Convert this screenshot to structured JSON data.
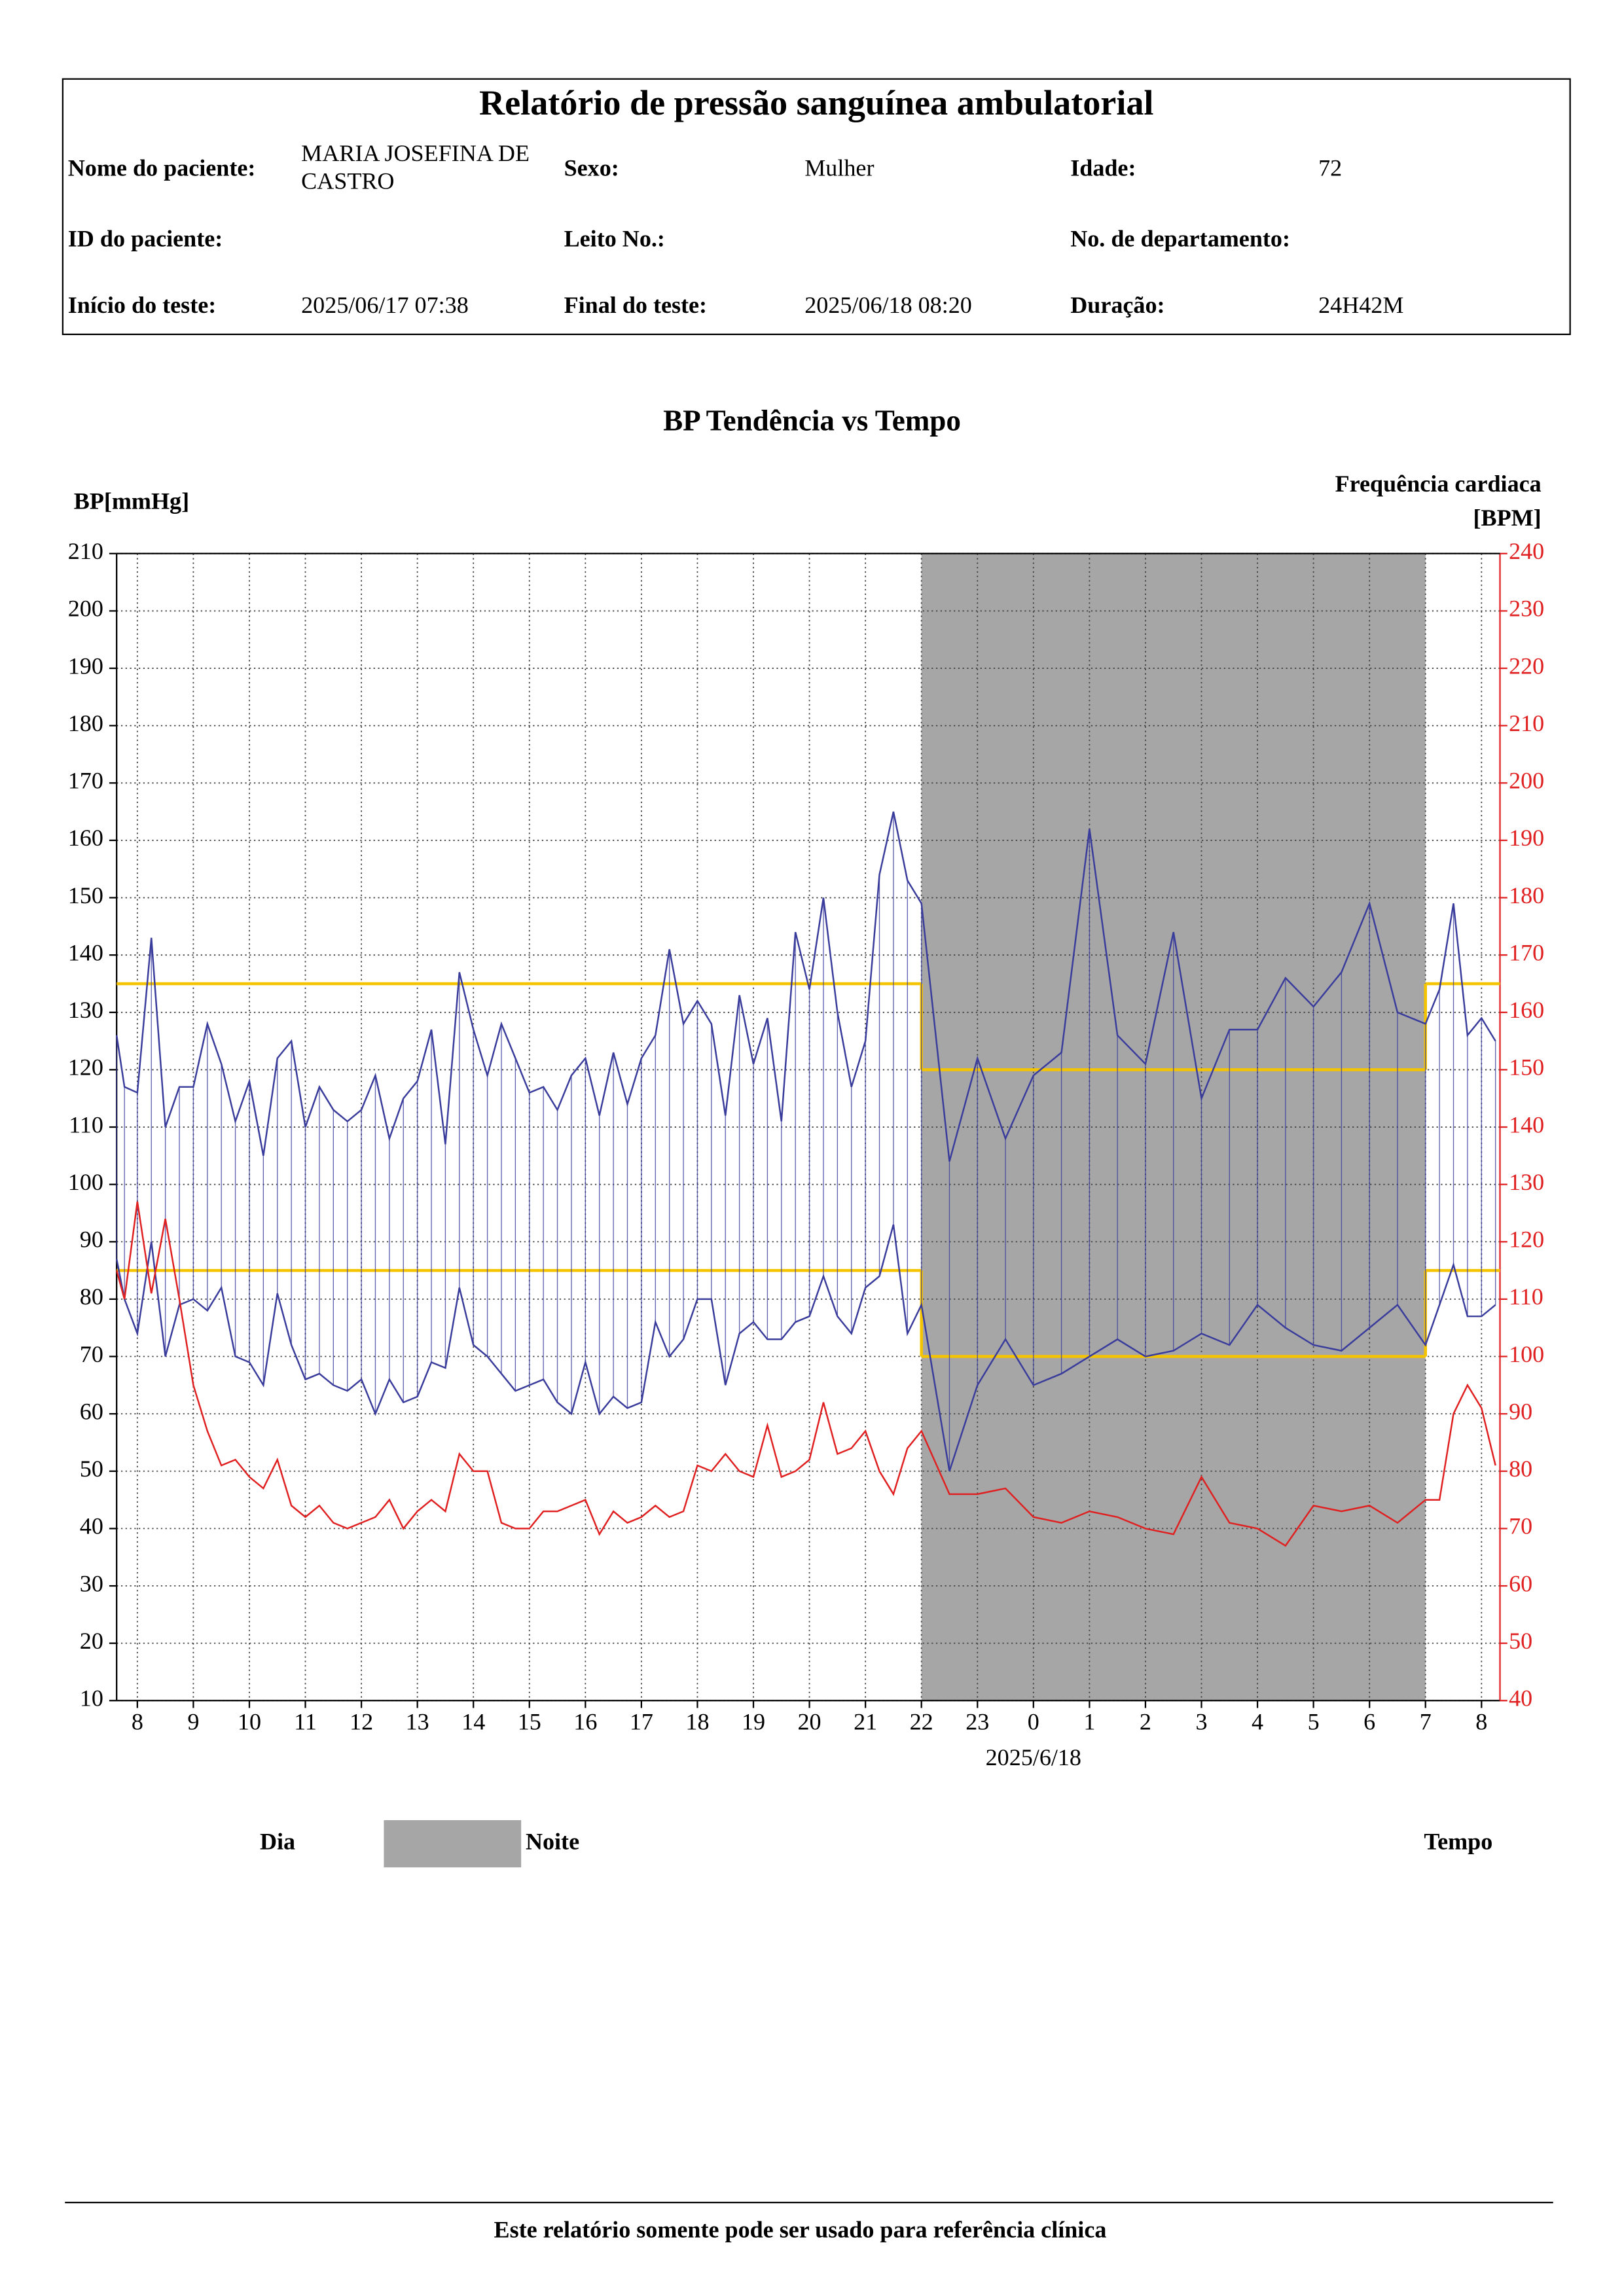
{
  "header": {
    "title": "Relatório de pressão sanguínea ambulatorial",
    "rows": [
      [
        {
          "label": "Nome do paciente:",
          "value": "MARIA JOSEFINA DE CASTRO"
        },
        {
          "label": "Sexo:",
          "value": "Mulher"
        },
        {
          "label": "Idade:",
          "value": "72"
        }
      ],
      [
        {
          "label": "ID do paciente:"
        },
        {
          "label": "Leito No.:"
        },
        {
          "label": "No. de departamento:"
        }
      ],
      [
        {
          "label": "Início do teste:",
          "value": "2025/06/17 07:38"
        },
        {
          "label": "Final do teste:",
          "value": "2025/06/18 08:20"
        },
        {
          "label": "Duração:",
          "value": "24H42M"
        }
      ]
    ]
  },
  "chart_data": {
    "type": "line",
    "title": "BP Tendência vs Tempo",
    "ylabel": "BP[mmHg]",
    "y2label": "Frequência cardiaca [BPM]",
    "xlabel": "Tempo",
    "date_label": {
      "value": 24,
      "label": "2025/6/18"
    },
    "xlim": [
      7.63,
      32.33
    ],
    "xticks": [
      8,
      9,
      10,
      11,
      12,
      13,
      14,
      15,
      16,
      17,
      18,
      19,
      20,
      21,
      22,
      23,
      {
        "value": 24,
        "label": "0"
      },
      {
        "value": 25,
        "label": "1"
      },
      {
        "value": 26,
        "label": "2"
      },
      {
        "value": 27,
        "label": "3"
      },
      {
        "value": 28,
        "label": "4"
      },
      {
        "value": 29,
        "label": "5"
      },
      {
        "value": 30,
        "label": "6"
      },
      {
        "value": 31,
        "label": "7"
      },
      {
        "value": 32,
        "label": "8"
      }
    ],
    "ylim": [
      10,
      210
    ],
    "yticks": [
      10,
      20,
      30,
      40,
      50,
      60,
      70,
      80,
      90,
      100,
      110,
      120,
      130,
      140,
      150,
      160,
      170,
      180,
      190,
      200,
      210
    ],
    "y2lim": [
      40,
      240
    ],
    "y2ticks": [
      40,
      50,
      60,
      70,
      80,
      90,
      100,
      110,
      120,
      130,
      140,
      150,
      160,
      170,
      180,
      190,
      200,
      210,
      220,
      230,
      240
    ],
    "grid": true,
    "night": {
      "start": 22,
      "end": 31,
      "color": "#a6a6a6"
    },
    "periods": [
      {
        "label": "Dia",
        "color": "#ffffff"
      },
      {
        "label": "Noite",
        "color": "#a6a6a6"
      }
    ],
    "limits": {
      "color": "#f5c400",
      "segments": [
        {
          "start": 7.63,
          "end": 22,
          "values": [
            135,
            85
          ]
        },
        {
          "start": 22,
          "end": 31,
          "values": [
            120,
            70
          ]
        },
        {
          "start": 31,
          "end": 32.33,
          "values": [
            135,
            85
          ]
        }
      ]
    },
    "x": [
      7.63,
      7.77,
      8,
      8.25,
      8.5,
      8.75,
      9,
      9.25,
      9.5,
      9.75,
      10,
      10.25,
      10.5,
      10.75,
      11,
      11.25,
      11.5,
      11.75,
      12,
      12.25,
      12.5,
      12.75,
      13,
      13.25,
      13.5,
      13.75,
      14,
      14.25,
      14.5,
      14.75,
      15,
      15.25,
      15.5,
      15.75,
      16,
      16.25,
      16.5,
      16.75,
      17,
      17.25,
      17.5,
      17.75,
      18,
      18.25,
      18.5,
      18.75,
      19,
      19.25,
      19.5,
      19.75,
      20,
      20.25,
      20.5,
      20.75,
      21,
      21.25,
      21.5,
      21.75,
      22,
      22.5,
      23,
      23.5,
      24,
      24.5,
      25,
      25.5,
      26,
      26.5,
      27,
      27.5,
      28,
      28.5,
      29,
      29.5,
      30,
      30.5,
      31,
      31.25,
      31.5,
      31.75,
      32,
      32.25
    ],
    "series": [
      {
        "color": "#3a3c9c",
        "values": [
          126,
          117,
          116,
          143,
          110,
          117,
          117,
          128,
          121,
          111,
          118,
          105,
          122,
          125,
          110,
          117,
          113,
          111,
          113,
          119,
          108,
          115,
          118,
          127,
          107,
          137,
          127,
          119,
          128,
          122,
          116,
          117,
          113,
          119,
          122,
          112,
          123,
          114,
          122,
          126,
          141,
          128,
          132,
          128,
          112,
          133,
          121,
          129,
          111,
          144,
          134,
          150,
          130,
          117,
          125,
          154,
          165,
          153,
          149,
          104,
          122,
          108,
          119,
          123,
          162,
          126,
          121,
          144,
          115,
          127,
          127,
          136,
          131,
          137,
          149,
          130,
          128,
          134,
          149,
          126,
          129,
          125
        ]
      },
      {
        "color": "#3a3c9c",
        "values": [
          87,
          80,
          74,
          90,
          70,
          79,
          80,
          78,
          82,
          70,
          69,
          65,
          81,
          72,
          66,
          67,
          65,
          64,
          66,
          60,
          66,
          62,
          63,
          69,
          68,
          82,
          72,
          70,
          67,
          64,
          65,
          66,
          62,
          60,
          69,
          60,
          63,
          61,
          62,
          76,
          70,
          73,
          80,
          80,
          65,
          74,
          76,
          73,
          73,
          76,
          77,
          84,
          77,
          74,
          82,
          84,
          93,
          74,
          79,
          50,
          65,
          73,
          65,
          67,
          70,
          73,
          70,
          71,
          74,
          72,
          79,
          75,
          72,
          71,
          75,
          79,
          72,
          79,
          86,
          77,
          77,
          79
        ]
      },
      {
        "color": "#e02020",
        "axis": "y2",
        "values": [
          115,
          110,
          127,
          111,
          124,
          110,
          95,
          87,
          81,
          82,
          79,
          77,
          82,
          74,
          72,
          74,
          71,
          70,
          71,
          72,
          75,
          70,
          73,
          75,
          73,
          83,
          80,
          80,
          71,
          70,
          70,
          73,
          73,
          74,
          75,
          69,
          73,
          71,
          72,
          74,
          72,
          73,
          81,
          80,
          83,
          80,
          79,
          88,
          79,
          80,
          82,
          92,
          83,
          84,
          87,
          80,
          76,
          84,
          87,
          76,
          76,
          77,
          72,
          71,
          73,
          72,
          70,
          69,
          79,
          71,
          70,
          67,
          74,
          73,
          74,
          71,
          75,
          75,
          90,
          95,
          91,
          81
        ]
      }
    ]
  },
  "footer": "Este relatório somente pode ser usado para referência clínica"
}
